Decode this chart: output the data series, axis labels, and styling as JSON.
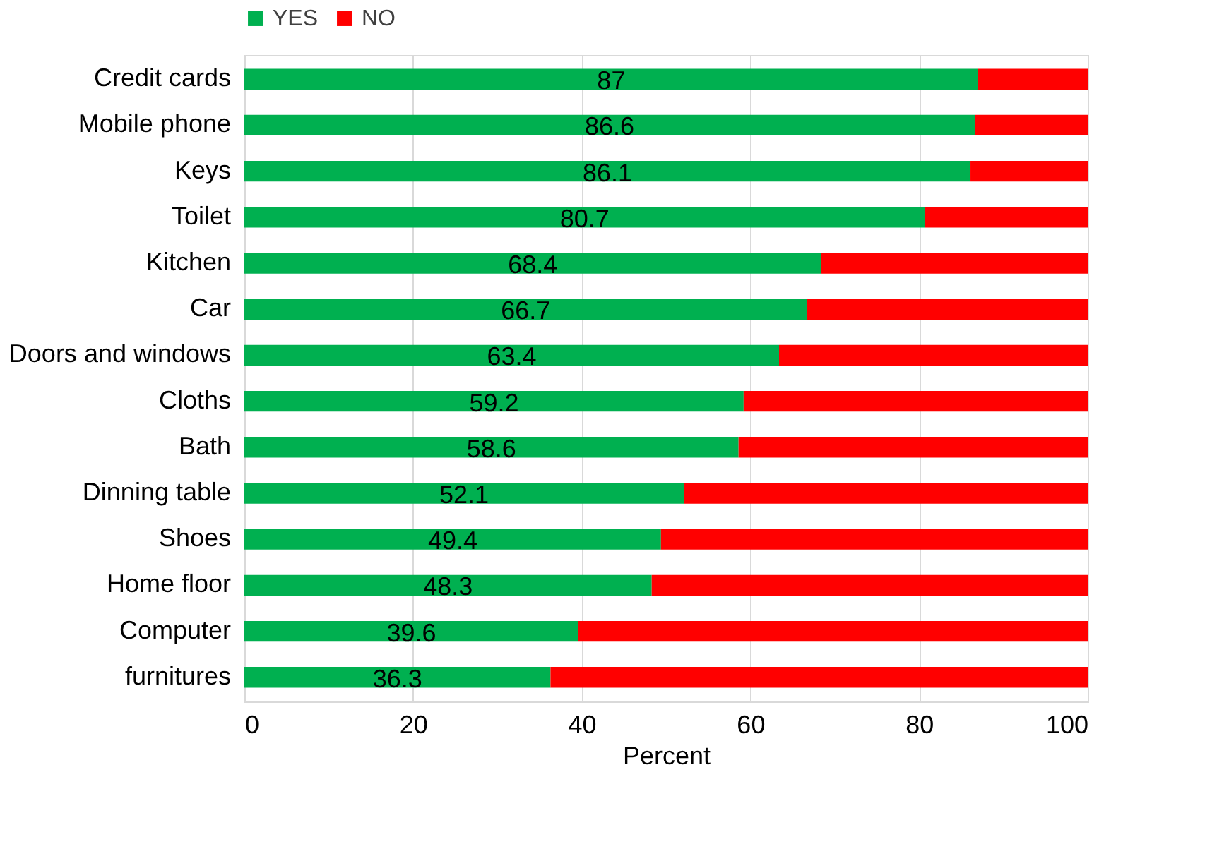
{
  "chart_data": {
    "type": "bar",
    "orientation": "horizontal",
    "stacked": true,
    "xlabel": "Percent",
    "categories": [
      "Credit cards",
      "Mobile phone",
      "Keys",
      "Toilet",
      "Kitchen",
      "Car",
      "Doors and windows",
      "Cloths",
      "Bath",
      "Dinning table",
      "Shoes",
      "Home floor",
      "Computer",
      "furnitures"
    ],
    "series": [
      {
        "name": "YES",
        "color": "#00b050",
        "values": [
          87,
          86.6,
          86.1,
          80.7,
          68.4,
          66.7,
          63.4,
          59.2,
          58.6,
          52.1,
          49.4,
          48.3,
          39.6,
          36.3
        ],
        "value_labels": [
          "87",
          "86.6",
          "86.1",
          "80.7",
          "68.4",
          "66.7",
          "63.4",
          "59.2",
          "58.6",
          "52.1",
          "49.4",
          "48.3",
          "39.6",
          "36.3"
        ]
      },
      {
        "name": "NO",
        "color": "#ff0000",
        "values": [
          13,
          13.4,
          13.9,
          19.3,
          31.6,
          33.3,
          36.6,
          40.8,
          41.4,
          47.9,
          50.6,
          51.7,
          60.4,
          63.7
        ]
      }
    ],
    "xlim": [
      0,
      100
    ],
    "xticks": [
      0,
      20,
      40,
      60,
      80,
      100
    ],
    "grid": "x",
    "legend": "top"
  }
}
